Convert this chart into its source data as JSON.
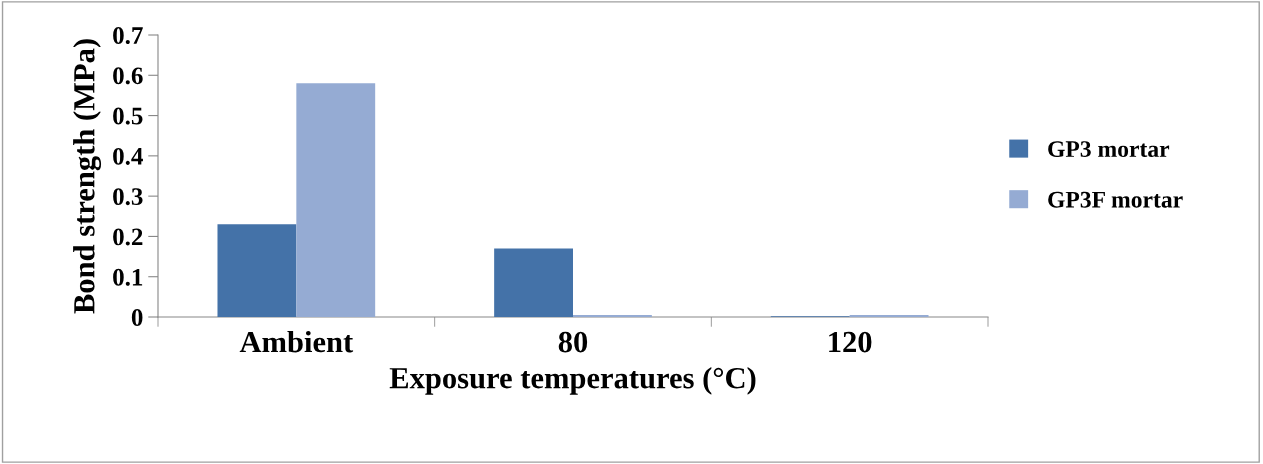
{
  "chart_data": {
    "type": "bar",
    "xlabel": "Exposure temperatures (°C)",
    "ylabel": "Bond strength (MPa)",
    "categories": [
      "Ambient",
      "80",
      "120"
    ],
    "series": [
      {
        "name": "GP3 mortar",
        "color": "#4472a8",
        "values": [
          0.23,
          0.17,
          0.002
        ]
      },
      {
        "name": "GP3F mortar",
        "color": "#95abd3",
        "values": [
          0.58,
          0.005,
          0.005
        ]
      }
    ],
    "ylim": [
      0,
      0.7
    ],
    "yticks": [
      0,
      0.1,
      0.2,
      0.3,
      0.4,
      0.5,
      0.6,
      0.7
    ],
    "grid": false,
    "legend": "right"
  }
}
